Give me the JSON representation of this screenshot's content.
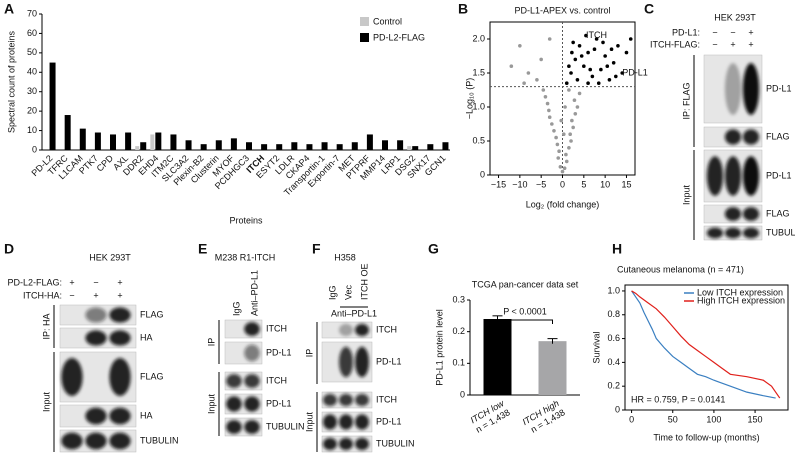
{
  "panel_labels": [
    "A",
    "B",
    "C",
    "D",
    "E",
    "F",
    "G",
    "H"
  ],
  "chart_data": [
    {
      "type": "bar",
      "ylabel": "Spectral count of proteins",
      "xlabel": "Proteins",
      "categories": [
        "PD-L2",
        "TFRC",
        "L1CAM",
        "PTK7",
        "CPD",
        "AXL",
        "DDR2",
        "EHD4",
        "ITM2C",
        "SLC3A2",
        "Plexin-B2",
        "Clusterin",
        "MYOF",
        "PCDHGC3",
        "ITCH",
        "ESYT2",
        "LDLR",
        "CKAP4",
        "Transportin-1",
        "Exportin-7",
        "MET",
        "PTPRF",
        "MMP14",
        "LRP1",
        "DSG2",
        "SNX17",
        "GCN1"
      ],
      "highlight_index": 14,
      "highlight_color": "#e0201b",
      "series": [
        {
          "name": "Control",
          "color": "#c8c8c8",
          "values": [
            0,
            0,
            0,
            0,
            0,
            0,
            2,
            8,
            0,
            0,
            0,
            0,
            0,
            0,
            0,
            0,
            0,
            0,
            0,
            0,
            0,
            0,
            0,
            0,
            2,
            0,
            0
          ]
        },
        {
          "name": "PD-L2-FLAG",
          "color": "#000000",
          "values": [
            45,
            18,
            11,
            9,
            8,
            9,
            4,
            9,
            8,
            5,
            3,
            5,
            6,
            4,
            3,
            3,
            4,
            3,
            4,
            3,
            4,
            8,
            5,
            5,
            2,
            3,
            4
          ]
        }
      ],
      "ylim": [
        0,
        70
      ],
      "yticks": [
        0,
        10,
        20,
        30,
        40,
        50,
        60,
        70
      ],
      "legend": "top-right"
    },
    {
      "type": "scatter",
      "title": "PD-L1-APEX vs. control",
      "xlabel": "Log₂ (fold change)",
      "ylabel": "−Log₁₀ (P)",
      "xlim": [
        -17,
        17
      ],
      "xticks": [
        {
          "value": -15,
          "label": "−15"
        },
        {
          "value": -10,
          "label": "−10"
        },
        {
          "value": -5,
          "label": "−5"
        },
        0,
        5,
        10,
        15
      ],
      "ylim": [
        0,
        2.25
      ],
      "yticks": [
        0,
        0.5,
        {
          "value": 1,
          "label": "1.0"
        },
        1.5,
        {
          "value": 2,
          "label": "2.0"
        }
      ],
      "thresholds": {
        "x": 0,
        "y": 1.3
      },
      "series": [
        {
          "color": "#999999",
          "x": [
            0,
            0.5,
            -0.5,
            1,
            -1,
            0.8,
            -0.8,
            1.5,
            -1.2,
            2,
            -1.5,
            1.8,
            -2,
            2.5,
            -2.5,
            2.2,
            -3,
            3,
            -3.2,
            3.5,
            -3.5,
            2.8,
            -4,
            4,
            -4.5,
            -8,
            -10,
            -6,
            -12,
            -5,
            -3,
            -9,
            1.5,
            0.3,
            -0.3,
            0.6
          ],
          "y": [
            0.05,
            0.1,
            0.12,
            0.2,
            0.25,
            0.3,
            0.35,
            0.4,
            0.45,
            0.5,
            0.55,
            0.6,
            0.65,
            0.7,
            0.75,
            0.8,
            0.85,
            0.9,
            0.95,
            1.0,
            1.05,
            1.1,
            1.15,
            1.2,
            1.25,
            1.5,
            1.9,
            1.4,
            1.6,
            1.7,
            2.0,
            1.35,
            1.25,
            0.6,
            0.8,
            1.0
          ]
        },
        {
          "color": "#000000",
          "x": [
            1,
            2,
            3,
            4,
            5,
            6,
            7,
            8,
            9,
            10,
            11,
            12,
            13,
            14,
            15,
            2.5,
            3.5,
            4.5,
            5.5,
            6.5,
            7.5,
            8.5,
            9.5,
            10.5,
            11.5,
            12.5,
            16,
            1.5,
            2.2,
            6
          ],
          "y": [
            1.35,
            1.5,
            1.7,
            1.9,
            1.6,
            1.8,
            1.45,
            2.0,
            1.55,
            1.75,
            1.4,
            1.65,
            1.9,
            1.5,
            1.8,
            1.95,
            1.4,
            1.75,
            2.05,
            1.55,
            1.85,
            1.35,
            1.95,
            1.6,
            1.85,
            1.45,
            2.0,
            1.6,
            1.8,
            1.35
          ]
        }
      ],
      "annotations": [
        {
          "text": "ITCH",
          "x": 5.5,
          "y": 2.05,
          "color": "#e0201b"
        },
        {
          "text": "PD-L1",
          "x": 14,
          "y": 1.5,
          "color": "#e0201b"
        }
      ]
    },
    {
      "type": "bar",
      "title": "TCGA pan-cancer data set",
      "ylabel": "PD-L1 protein level",
      "categories": [
        "ITCH low",
        "ITCH high"
      ],
      "category_notes": [
        "n = 1,438",
        "n = 1,438"
      ],
      "values": [
        0.24,
        0.17
      ],
      "errors": [
        0.01,
        0.008
      ],
      "colors": [
        "#000000",
        "#a6a6a8"
      ],
      "ylim": [
        0,
        0.3
      ],
      "yticks": [
        0,
        0.1,
        0.2,
        0.3
      ],
      "annotation": "P < 0.0001"
    },
    {
      "type": "line",
      "title": "Cutaneous melanoma (n = 471)",
      "xlabel": "Time to follow-up (months)",
      "ylabel": "Survival",
      "xlim": [
        -8,
        190
      ],
      "xticks": [
        0,
        50,
        100,
        150
      ],
      "ylim": [
        0,
        1.05
      ],
      "yticks": [
        0,
        0.2,
        0.4,
        0.6,
        0.8,
        {
          "value": 1,
          "label": "1.0"
        }
      ],
      "series": [
        {
          "name": "Low ITCH expression",
          "color": "#3a7fc1",
          "x": [
            0,
            5,
            10,
            15,
            20,
            25,
            30,
            40,
            50,
            60,
            70,
            80,
            90,
            100,
            120,
            140,
            160,
            175
          ],
          "values": [
            1,
            0.95,
            0.9,
            0.82,
            0.75,
            0.68,
            0.6,
            0.52,
            0.45,
            0.4,
            0.35,
            0.3,
            0.28,
            0.25,
            0.2,
            0.15,
            0.12,
            0.1
          ]
        },
        {
          "name": "High ITCH expression",
          "color": "#e0201b",
          "x": [
            0,
            5,
            10,
            20,
            30,
            40,
            50,
            60,
            70,
            80,
            90,
            100,
            110,
            120,
            140,
            160,
            170,
            180
          ],
          "values": [
            1,
            0.98,
            0.95,
            0.9,
            0.85,
            0.78,
            0.7,
            0.62,
            0.55,
            0.5,
            0.45,
            0.4,
            0.35,
            0.3,
            0.28,
            0.25,
            0.2,
            0.1
          ]
        }
      ],
      "annotation": {
        "text": "HR = 0.759, P = 0.0141",
        "color": "#e0201b"
      },
      "legend": "top-right"
    }
  ],
  "blots": {
    "C": {
      "title": "HEK 293T",
      "conditions": [
        {
          "label": "PD-L1:",
          "signs": [
            "−",
            "−",
            "+"
          ]
        },
        {
          "label": "ITCH-FLAG:",
          "signs": [
            "−",
            "+",
            "+"
          ]
        }
      ],
      "groups": [
        "IP: FLAG",
        "Input"
      ],
      "bands": [
        "PD-L1",
        "FLAG",
        "PD-L1",
        "FLAG",
        "TUBULIN"
      ]
    },
    "D": {
      "title": "HEK 293T",
      "conditions": [
        {
          "label": "PD-L2-FLAG:",
          "signs": [
            "+",
            "−",
            "+"
          ]
        },
        {
          "label": "ITCH-HA:",
          "signs": [
            "−",
            "+",
            "+"
          ]
        }
      ],
      "groups": [
        "IP: HA",
        "Input"
      ],
      "bands": [
        "FLAG",
        "HA",
        "FLAG",
        "HA",
        "TUBULIN"
      ]
    },
    "E": {
      "title": "M238 R1-ITCH",
      "lanes": [
        "IgG",
        "Anti–PD-L1"
      ],
      "groups": [
        "IP",
        "Input"
      ],
      "bands": [
        "ITCH",
        "PD-L1",
        "ITCH",
        "PD-L1",
        "TUBULIN"
      ]
    },
    "F": {
      "title": "H358",
      "lanes": [
        "IgG",
        "Vec",
        "ITCH OE"
      ],
      "lane_group": "Anti–PD-L1",
      "groups": [
        "IP",
        "Input"
      ],
      "bands": [
        "ITCH",
        "PD-L1",
        "ITCH",
        "PD-L1",
        "TUBULIN"
      ]
    }
  }
}
